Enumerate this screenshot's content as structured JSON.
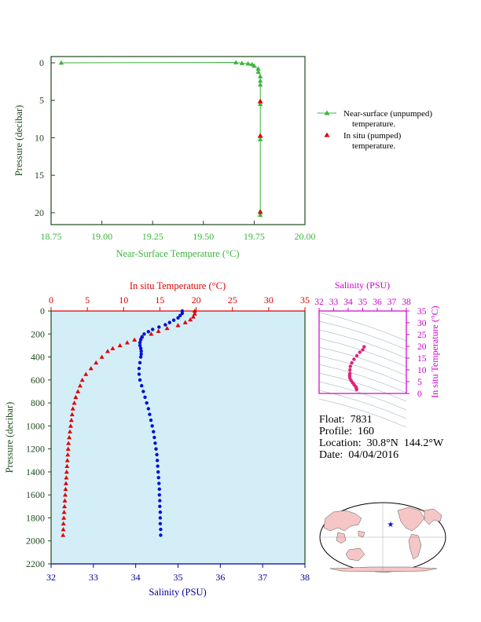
{
  "chart_data": [
    {
      "type": "line",
      "xlabel": "Near-Surface Temperature (°C)",
      "ylabel": "Pressure (decibar)",
      "xlim": [
        18.75,
        20.0
      ],
      "ylim": [
        0,
        22
      ],
      "y_inverted": true,
      "x_ticks": [
        "18.75",
        "19.00",
        "19.25",
        "19.50",
        "19.75",
        "20.00"
      ],
      "y_ticks": [
        "0",
        "5",
        "10",
        "15",
        "20"
      ],
      "grid": false,
      "legend_position": "right",
      "series": [
        {
          "name": "Near-surface (unpumped) temperature.",
          "color": "#3cb43c",
          "marker": "triangle",
          "points": [
            [
              18.8,
              0.0
            ],
            [
              19.66,
              -0.05
            ],
            [
              19.69,
              0.05
            ],
            [
              19.72,
              0.1
            ],
            [
              19.74,
              0.2
            ],
            [
              19.75,
              0.4
            ],
            [
              19.77,
              0.8
            ],
            [
              19.77,
              1.2
            ],
            [
              19.78,
              1.8
            ],
            [
              19.78,
              2.4
            ],
            [
              19.78,
              2.9
            ],
            [
              19.78,
              5.2
            ],
            [
              19.78,
              5.5
            ],
            [
              19.78,
              9.8
            ],
            [
              19.78,
              10.2
            ],
            [
              19.78,
              19.8
            ],
            [
              19.78,
              20.3
            ]
          ]
        },
        {
          "name": "In situ (pumped) temperature.",
          "color": "#e00000",
          "marker": "triangle",
          "points": [
            [
              19.78,
              5.1
            ],
            [
              19.78,
              9.7
            ],
            [
              19.78,
              19.9
            ]
          ]
        }
      ]
    },
    {
      "type": "line",
      "title_top": "In situ Temperature (°C)",
      "xlabel": "Salinity (PSU)",
      "ylabel": "Pressure (decibar)",
      "xlim_salinity": [
        32,
        38
      ],
      "xlim_temperature": [
        0,
        35
      ],
      "ylim": [
        0,
        2200
      ],
      "y_inverted": true,
      "x_ticks_salinity": [
        "32",
        "33",
        "34",
        "35",
        "36",
        "37",
        "38"
      ],
      "x_ticks_temperature": [
        "0",
        "5",
        "10",
        "15",
        "20",
        "25",
        "30",
        "35"
      ],
      "y_ticks": [
        "0",
        "200",
        "400",
        "600",
        "800",
        "1000",
        "1200",
        "1400",
        "1600",
        "1800",
        "2000",
        "2200"
      ],
      "background": "#d4eef8",
      "series": [
        {
          "name": "temperature",
          "color": "#e00000",
          "marker": "triangle",
          "points": [
            [
              19.8,
              0
            ],
            [
              19.8,
              25
            ],
            [
              19.6,
              50
            ],
            [
              19.2,
              75
            ],
            [
              18.5,
              100
            ],
            [
              17.5,
              125
            ],
            [
              16.0,
              150
            ],
            [
              14.8,
              175
            ],
            [
              13.8,
              200
            ],
            [
              12.5,
              225
            ],
            [
              11.5,
              250
            ],
            [
              10.5,
              275
            ],
            [
              9.5,
              300
            ],
            [
              8.5,
              325
            ],
            [
              7.8,
              350
            ],
            [
              7.0,
              400
            ],
            [
              6.2,
              450
            ],
            [
              5.5,
              500
            ],
            [
              4.8,
              550
            ],
            [
              4.3,
              600
            ],
            [
              4.0,
              650
            ],
            [
              3.7,
              700
            ],
            [
              3.4,
              750
            ],
            [
              3.2,
              800
            ],
            [
              3.0,
              850
            ],
            [
              2.9,
              900
            ],
            [
              2.8,
              950
            ],
            [
              2.7,
              1000
            ],
            [
              2.6,
              1050
            ],
            [
              2.5,
              1100
            ],
            [
              2.4,
              1150
            ],
            [
              2.35,
              1200
            ],
            [
              2.3,
              1250
            ],
            [
              2.25,
              1300
            ],
            [
              2.2,
              1350
            ],
            [
              2.15,
              1400
            ],
            [
              2.1,
              1450
            ],
            [
              2.05,
              1500
            ],
            [
              2.0,
              1550
            ],
            [
              1.95,
              1600
            ],
            [
              1.9,
              1650
            ],
            [
              1.85,
              1700
            ],
            [
              1.8,
              1750
            ],
            [
              1.75,
              1800
            ],
            [
              1.7,
              1850
            ],
            [
              1.68,
              1900
            ],
            [
              1.65,
              1950
            ]
          ]
        },
        {
          "name": "salinity",
          "color": "#0010d8",
          "marker": "circle",
          "points": [
            [
              35.1,
              0
            ],
            [
              35.1,
              20
            ],
            [
              35.05,
              40
            ],
            [
              35.0,
              60
            ],
            [
              34.9,
              80
            ],
            [
              34.8,
              100
            ],
            [
              34.7,
              120
            ],
            [
              34.55,
              140
            ],
            [
              34.4,
              160
            ],
            [
              34.3,
              180
            ],
            [
              34.2,
              200
            ],
            [
              34.15,
              225
            ],
            [
              34.12,
              250
            ],
            [
              34.1,
              275
            ],
            [
              34.1,
              300
            ],
            [
              34.12,
              325
            ],
            [
              34.13,
              350
            ],
            [
              34.13,
              375
            ],
            [
              34.12,
              400
            ],
            [
              34.1,
              450
            ],
            [
              34.08,
              500
            ],
            [
              34.08,
              550
            ],
            [
              34.1,
              600
            ],
            [
              34.14,
              650
            ],
            [
              34.18,
              700
            ],
            [
              34.22,
              750
            ],
            [
              34.26,
              800
            ],
            [
              34.3,
              850
            ],
            [
              34.33,
              900
            ],
            [
              34.36,
              950
            ],
            [
              34.39,
              1000
            ],
            [
              34.42,
              1050
            ],
            [
              34.44,
              1100
            ],
            [
              34.46,
              1150
            ],
            [
              34.48,
              1200
            ],
            [
              34.5,
              1250
            ],
            [
              34.51,
              1300
            ],
            [
              34.52,
              1350
            ],
            [
              34.53,
              1400
            ],
            [
              34.54,
              1450
            ],
            [
              34.55,
              1500
            ],
            [
              34.56,
              1550
            ],
            [
              34.56,
              1600
            ],
            [
              34.57,
              1650
            ],
            [
              34.57,
              1700
            ],
            [
              34.58,
              1750
            ],
            [
              34.58,
              1800
            ],
            [
              34.58,
              1850
            ],
            [
              34.59,
              1900
            ],
            [
              34.59,
              1950
            ]
          ]
        }
      ]
    },
    {
      "type": "scatter",
      "title": "Salinity (PSU)",
      "ylabel": "In situ Temperature (°C)",
      "xlim": [
        32,
        38
      ],
      "ylim": [
        0,
        35
      ],
      "x_ticks": [
        "32",
        "33",
        "34",
        "35",
        "36",
        "37",
        "38"
      ],
      "y_ticks": [
        "0",
        "5",
        "10",
        "15",
        "20",
        "25",
        "30",
        "35"
      ],
      "color": "#e0207a",
      "points": [
        [
          35.1,
          19.8
        ],
        [
          35.0,
          18.5
        ],
        [
          34.8,
          17.5
        ],
        [
          34.6,
          16.0
        ],
        [
          34.4,
          14.5
        ],
        [
          34.25,
          13.0
        ],
        [
          34.15,
          11.5
        ],
        [
          34.12,
          10.0
        ],
        [
          34.12,
          8.5
        ],
        [
          34.1,
          7.5
        ],
        [
          34.12,
          6.5
        ],
        [
          34.2,
          5.5
        ],
        [
          34.3,
          4.6
        ],
        [
          34.4,
          3.8
        ],
        [
          34.5,
          3.0
        ],
        [
          34.55,
          2.5
        ],
        [
          34.57,
          2.0
        ],
        [
          34.58,
          1.7
        ]
      ]
    }
  ],
  "legend": {
    "near_surface_line1": "Near-surface (unpumped)",
    "near_surface_line2": "temperature.",
    "in_situ_line1": "In situ (pumped)",
    "in_situ_line2": "temperature."
  },
  "info": {
    "float": "Float:  7831",
    "profile": "Profile:  160",
    "location": "Location:  30.8°N  144.2°W",
    "date": "Date:  04/04/2016"
  },
  "colors": {
    "green": "#3cb43c",
    "red": "#e00000",
    "blue": "#0010d8",
    "magenta": "#cc00cc",
    "dark_green": "#1e4a1e",
    "navy": "#0000a0",
    "profile_bg": "#d4eef8"
  },
  "map": {
    "marker_color": "#0010d8",
    "land_color": "#f6c6c6",
    "ocean_color": "#ffffff"
  }
}
